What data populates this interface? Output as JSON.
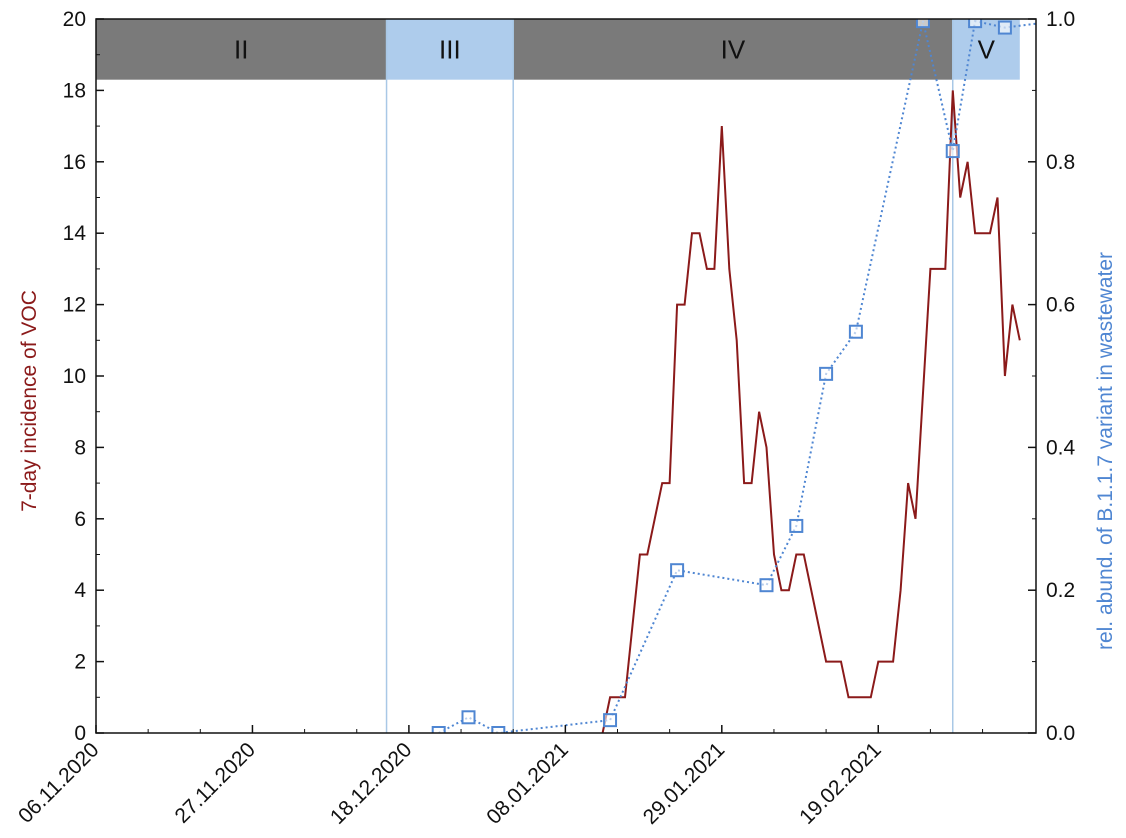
{
  "chart_data": {
    "type": "line",
    "title": "",
    "x_axis": {
      "type": "date",
      "range": [
        "2020-11-06",
        "2021-03-07"
      ],
      "tick_labels": [
        "06.11.2020",
        "27.11.2020",
        "18.12.2020",
        "08.01.2021",
        "29.01.2021",
        "19.02.2021"
      ],
      "tick_dates": [
        "2020-11-06",
        "2020-11-27",
        "2020-12-18",
        "2021-01-08",
        "2021-01-29",
        "2021-02-19"
      ],
      "minor_tick_dates": [
        "2020-11-13",
        "2020-11-20",
        "2020-12-04",
        "2020-12-11",
        "2020-12-25",
        "2021-01-01",
        "2021-01-15",
        "2021-01-22",
        "2021-02-05",
        "2021-02-12",
        "2021-02-26",
        "2021-03-05"
      ]
    },
    "y_left": {
      "label": "7-day incidence of VOC",
      "range": [
        0,
        20
      ],
      "ticks": [
        "0",
        "2",
        "4",
        "6",
        "8",
        "10",
        "12",
        "14",
        "16",
        "18",
        "20"
      ],
      "color": "#8b1a1a"
    },
    "y_right": {
      "label": "rel. abund. of B.1.1.7 variant in wastewater",
      "range": [
        0,
        1
      ],
      "ticks": [
        "0.0",
        "0.2",
        "0.4",
        "0.6",
        "0.8",
        "1.0"
      ],
      "color": "#4f86d2"
    },
    "phases": [
      {
        "label": "II",
        "start": "2020-11-06",
        "end": "2020-12-15",
        "color": "#7a7a7a"
      },
      {
        "label": "III",
        "start": "2020-12-15",
        "end": "2021-01-01",
        "color": "#aeccec"
      },
      {
        "label": "IV",
        "start": "2021-01-01",
        "end": "2021-03-01",
        "color": "#7a7a7a"
      },
      {
        "label": "V",
        "start": "2021-03-01",
        "end": "2021-03-10",
        "color": "#aeccec"
      }
    ],
    "phase_band_range": [
      18.3,
      20
    ],
    "phase_dividers": [
      "2020-12-15",
      "2021-01-01",
      "2021-03-01"
    ],
    "grid": false,
    "legend": "none",
    "series": [
      {
        "axis": "left",
        "style": "solid",
        "color": "#8b1a1a",
        "points": [
          [
            "2021-01-13",
            0
          ],
          [
            "2021-01-14",
            1
          ],
          [
            "2021-01-16",
            1
          ],
          [
            "2021-01-18",
            5
          ],
          [
            "2021-01-19",
            5
          ],
          [
            "2021-01-21",
            7
          ],
          [
            "2021-01-22",
            7
          ],
          [
            "2021-01-23",
            12
          ],
          [
            "2021-01-24",
            12
          ],
          [
            "2021-01-25",
            14
          ],
          [
            "2021-01-26",
            14
          ],
          [
            "2021-01-27",
            13
          ],
          [
            "2021-01-28",
            13
          ],
          [
            "2021-01-29",
            17
          ],
          [
            "2021-01-30",
            13
          ],
          [
            "2021-01-31",
            11
          ],
          [
            "2021-02-01",
            7
          ],
          [
            "2021-02-02",
            7
          ],
          [
            "2021-02-03",
            9
          ],
          [
            "2021-02-04",
            8
          ],
          [
            "2021-02-05",
            5
          ],
          [
            "2021-02-06",
            4
          ],
          [
            "2021-02-07",
            4
          ],
          [
            "2021-02-08",
            5
          ],
          [
            "2021-02-09",
            5
          ],
          [
            "2021-02-12",
            2
          ],
          [
            "2021-02-14",
            2
          ],
          [
            "2021-02-15",
            1
          ],
          [
            "2021-02-18",
            1
          ],
          [
            "2021-02-19",
            2
          ],
          [
            "2021-02-21",
            2
          ],
          [
            "2021-02-22",
            4
          ],
          [
            "2021-02-23",
            7
          ],
          [
            "2021-02-24",
            6
          ],
          [
            "2021-02-26",
            13
          ],
          [
            "2021-02-28",
            13
          ],
          [
            "2021-03-01",
            18
          ],
          [
            "2021-03-02",
            15
          ],
          [
            "2021-03-03",
            16
          ],
          [
            "2021-03-04",
            14
          ],
          [
            "2021-03-06",
            14
          ],
          [
            "2021-03-07",
            15
          ],
          [
            "2021-03-08",
            10
          ],
          [
            "2021-03-09",
            12
          ],
          [
            "2021-03-10",
            11
          ]
        ]
      },
      {
        "axis": "right",
        "style": "dotted",
        "marker": "square",
        "color": "#4f86d2",
        "points": [
          [
            "2020-12-22",
            0.0
          ],
          [
            "2020-12-26",
            0.022
          ],
          [
            "2020-12-30",
            0.0
          ],
          [
            "2021-01-14",
            0.018
          ],
          [
            "2021-01-23",
            0.228
          ],
          [
            "2021-02-04",
            0.207
          ],
          [
            "2021-02-08",
            0.29
          ],
          [
            "2021-02-12",
            0.503
          ],
          [
            "2021-02-16",
            0.562
          ],
          [
            "2021-02-25",
            0.997
          ],
          [
            "2021-03-01",
            0.815
          ],
          [
            "2021-03-04",
            0.997
          ],
          [
            "2021-03-08",
            0.988
          ],
          [
            "2021-03-15",
            0.997
          ]
        ]
      }
    ]
  }
}
